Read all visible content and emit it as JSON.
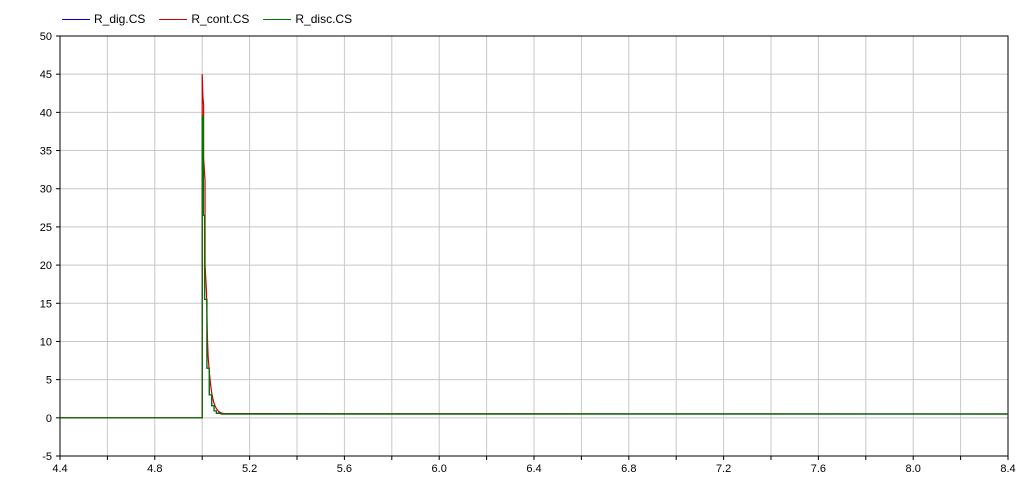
{
  "chart_data": {
    "type": "line",
    "title": "",
    "xlabel": "",
    "ylabel": "",
    "xlim": [
      4.4,
      8.4
    ],
    "ylim": [
      -5,
      50
    ],
    "grid": true,
    "legend_position": "top-left",
    "x_ticks": [
      4.4,
      4.6,
      4.8,
      5.0,
      5.2,
      5.4,
      5.6,
      5.8,
      6.0,
      6.2,
      6.4,
      6.6,
      6.8,
      7.0,
      7.2,
      7.4,
      7.6,
      7.8,
      8.0,
      8.2,
      8.4
    ],
    "x_tick_labels": [
      "4.4",
      "",
      "4.8",
      "",
      "5.2",
      "",
      "5.6",
      "",
      "6.0",
      "",
      "6.4",
      "",
      "6.8",
      "",
      "7.2",
      "",
      "7.6",
      "",
      "8.0",
      "",
      "8.4"
    ],
    "y_ticks": [
      -5,
      0,
      5,
      10,
      15,
      20,
      25,
      30,
      35,
      40,
      45,
      50
    ],
    "y_tick_labels": [
      "-5",
      "0",
      "5",
      "10",
      "15",
      "20",
      "25",
      "30",
      "35",
      "40",
      "45",
      "50"
    ],
    "series": [
      {
        "name": "R_dig.CS",
        "color": "#0000cc",
        "x": [
          4.4,
          5.0,
          5.0,
          5.005,
          5.005,
          5.01,
          5.01,
          5.02,
          5.02,
          5.03,
          5.03,
          5.04,
          5.04,
          5.05,
          5.05,
          5.06,
          5.06,
          5.08,
          5.08,
          8.4
        ],
        "y": [
          0,
          0,
          39.5,
          39.5,
          26.5,
          26.5,
          15.5,
          15.5,
          6.5,
          6.5,
          3.0,
          3.0,
          1.6,
          1.6,
          0.9,
          0.9,
          0.6,
          0.6,
          0.5,
          0.5
        ]
      },
      {
        "name": "R_cont.CS",
        "color": "#cc0000",
        "x": [
          4.4,
          5.0,
          5.0,
          5.003,
          5.006,
          5.006,
          5.012,
          5.012,
          5.018,
          5.022,
          5.025,
          5.03,
          5.035,
          5.04,
          5.045,
          5.05,
          5.055,
          5.06,
          5.065,
          5.07,
          5.08,
          5.09,
          8.4
        ],
        "y": [
          0,
          0,
          45.0,
          42.0,
          41.0,
          34.0,
          31.0,
          20.0,
          16.5,
          10.5,
          8.0,
          6.0,
          4.5,
          3.3,
          2.5,
          1.9,
          1.5,
          1.2,
          1.0,
          0.8,
          0.65,
          0.55,
          0.5
        ]
      },
      {
        "name": "R_disc.CS",
        "color": "#007700",
        "x": [
          4.4,
          5.0,
          5.0,
          5.005,
          5.005,
          5.01,
          5.01,
          5.02,
          5.02,
          5.03,
          5.03,
          5.04,
          5.04,
          5.05,
          5.05,
          5.06,
          5.06,
          5.08,
          5.08,
          8.4
        ],
        "y": [
          0,
          0,
          39.5,
          39.5,
          26.5,
          26.5,
          15.5,
          15.5,
          6.5,
          6.5,
          3.0,
          3.0,
          1.6,
          1.6,
          0.9,
          0.9,
          0.6,
          0.6,
          0.5,
          0.5
        ]
      }
    ]
  }
}
